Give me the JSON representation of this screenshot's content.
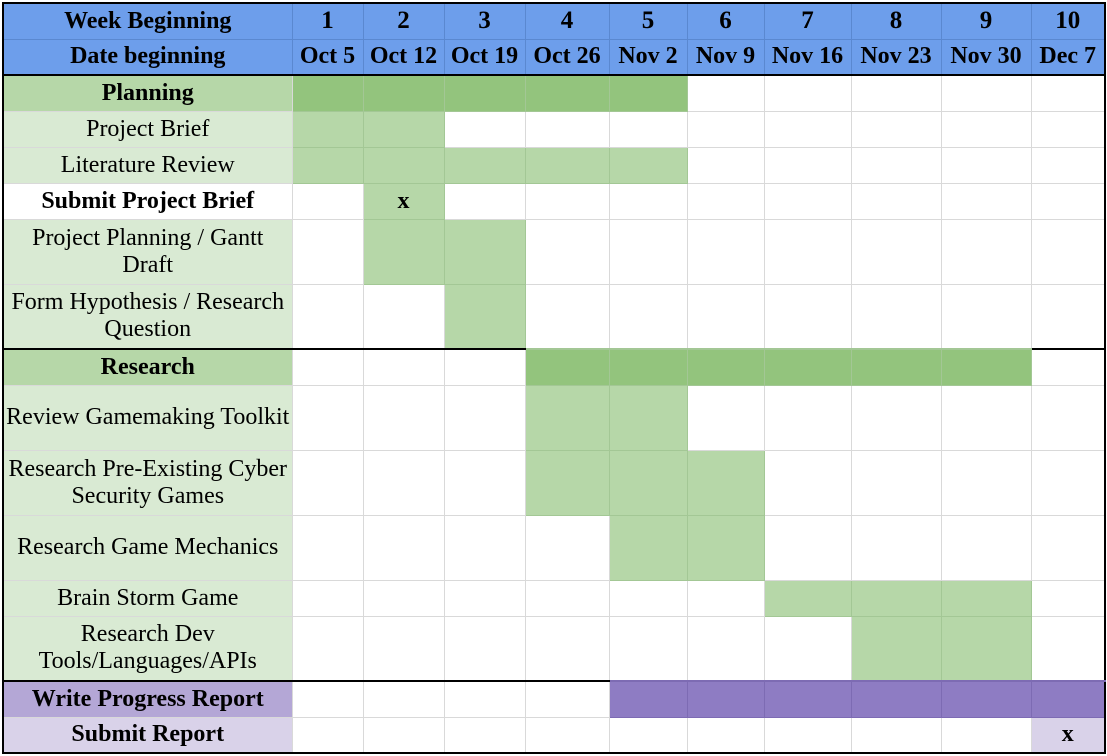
{
  "chart_data": {
    "type": "table",
    "header_rows": [
      {
        "label": "Week Beginning",
        "cells": [
          "1",
          "2",
          "3",
          "4",
          "5",
          "6",
          "7",
          "8",
          "9",
          "10"
        ]
      },
      {
        "label": "Date beginning",
        "cells": [
          "Oct 5",
          "Oct 12",
          "Oct 19",
          "Oct 26",
          "Nov 2",
          "Nov 9",
          "Nov 16",
          "Nov 23",
          "Nov 30",
          "Dec 7"
        ]
      }
    ],
    "tasks": [
      {
        "label": "Planning",
        "kind": "phase",
        "group": "planning",
        "weeks": [
          1,
          2,
          3,
          4,
          5
        ]
      },
      {
        "label": "Project Brief",
        "kind": "task",
        "group": "planning",
        "weeks": [
          1,
          2
        ]
      },
      {
        "label": "Literature Review",
        "kind": "task",
        "group": "planning",
        "weeks": [
          1,
          2,
          3,
          4,
          5
        ]
      },
      {
        "label": "Submit Project Brief",
        "kind": "milestone",
        "group": "planning",
        "weeks": [
          2
        ],
        "marker": "x"
      },
      {
        "label": "Project Planning / Gantt Draft",
        "kind": "task",
        "group": "planning",
        "weeks": [
          2,
          3
        ]
      },
      {
        "label": "Form Hypothesis / Research Question",
        "kind": "task",
        "group": "planning",
        "weeks": [
          3
        ]
      },
      {
        "label": "Research",
        "kind": "phase",
        "group": "research",
        "weeks": [
          4,
          5,
          6,
          7,
          8,
          9
        ]
      },
      {
        "label": "Review Gamemaking Toolkit",
        "kind": "task",
        "group": "research",
        "weeks": [
          4,
          5
        ]
      },
      {
        "label": "Research Pre-Existing Cyber Security Games",
        "kind": "task",
        "group": "research",
        "weeks": [
          4,
          5,
          6
        ]
      },
      {
        "label": "Research Game Mechanics",
        "kind": "task",
        "group": "research",
        "weeks": [
          5,
          6
        ]
      },
      {
        "label": "Brain Storm Game",
        "kind": "task",
        "group": "research",
        "weeks": [
          7,
          8,
          9
        ]
      },
      {
        "label": "Research Dev Tools/Languages/APIs",
        "kind": "task",
        "group": "research",
        "weeks": [
          8,
          9
        ]
      },
      {
        "label": "Write Progress Report",
        "kind": "phase",
        "group": "report",
        "weeks": [
          5,
          6,
          7,
          8,
          9,
          10
        ]
      },
      {
        "label": "Submit Report",
        "kind": "milestone",
        "group": "report",
        "weeks": [
          10
        ],
        "marker": "x"
      }
    ]
  },
  "colors": {
    "header": "#6d9eeb",
    "planning_label": "#d9ead3",
    "planning_label_phase": "#b6d7a8",
    "green_task": "#b6d7a8",
    "green_phase": "#93c47d",
    "report_label_phase": "#b4a7d6",
    "report_label_milestone": "#d9d2e9",
    "purple_phase": "#8e7cc3",
    "empty": "#ffffff"
  }
}
